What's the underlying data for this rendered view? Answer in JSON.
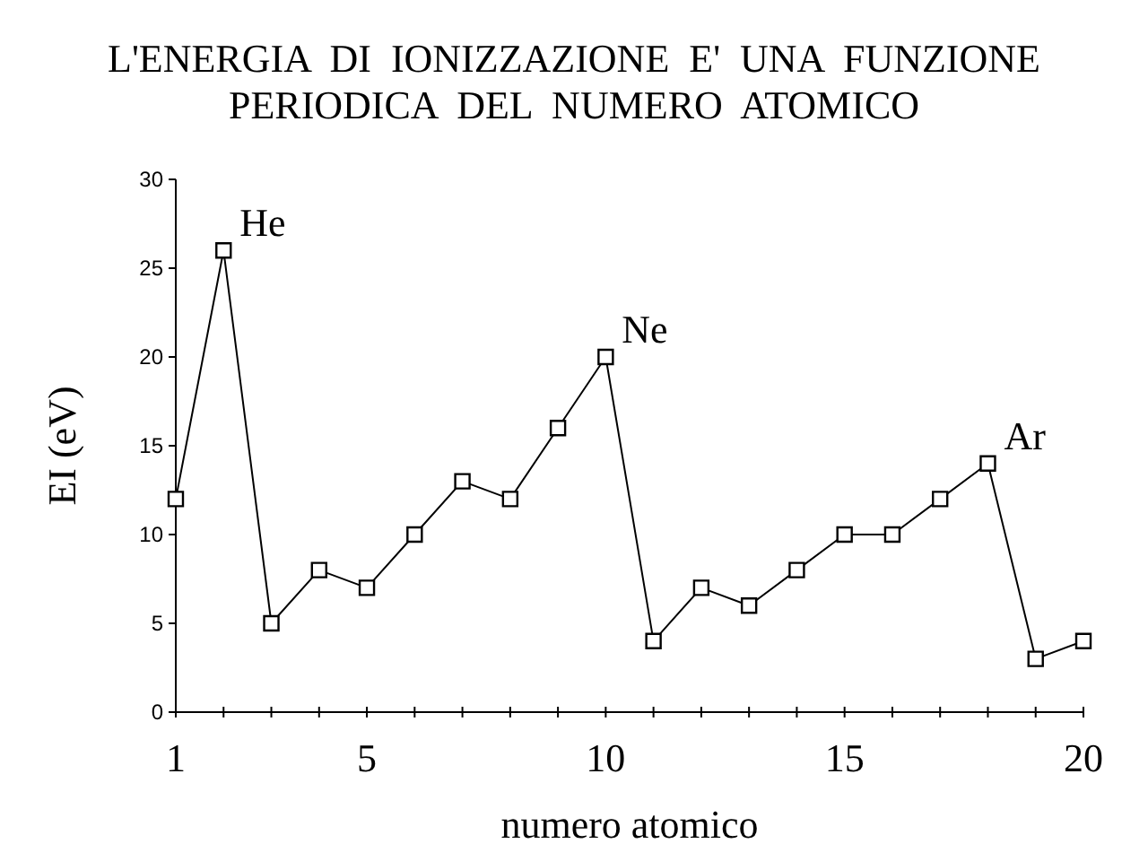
{
  "chart_data": {
    "type": "line",
    "title": "L'ENERGIA  DI  IONIZZAZIONE  E'  UNA  FUNZIONE\nPERIODICA  DEL  NUMERO  ATOMICO",
    "xlabel": "numero atomico",
    "ylabel": "EI (eV)",
    "x": [
      1,
      2,
      3,
      4,
      5,
      6,
      7,
      8,
      9,
      10,
      11,
      12,
      13,
      14,
      15,
      16,
      17,
      18,
      19,
      20
    ],
    "series": [
      {
        "color": "#000000",
        "values": [
          12,
          26,
          5,
          8,
          7,
          10,
          13,
          12,
          16,
          20,
          4,
          7,
          6,
          8,
          10,
          10,
          12,
          14,
          3,
          4
        ]
      }
    ],
    "xlim": [
      1,
      20
    ],
    "xticks": [
      1,
      {
        "value": 2,
        "label": null
      },
      {
        "value": 3,
        "label": null
      },
      {
        "value": 4,
        "label": null
      },
      5,
      {
        "value": 6,
        "label": null
      },
      {
        "value": 7,
        "label": null
      },
      {
        "value": 8,
        "label": null
      },
      {
        "value": 9,
        "label": null
      },
      10,
      {
        "value": 11,
        "label": null
      },
      {
        "value": 12,
        "label": null
      },
      {
        "value": 13,
        "label": null
      },
      {
        "value": 14,
        "label": null
      },
      15,
      {
        "value": 16,
        "label": null
      },
      {
        "value": 17,
        "label": null
      },
      {
        "value": 18,
        "label": null
      },
      {
        "value": 19,
        "label": null
      },
      20
    ],
    "ylim": [
      0,
      30
    ],
    "yticks": [
      0,
      5,
      10,
      15,
      20,
      25,
      30
    ],
    "marker": "square",
    "line_style": "solid",
    "grid": false,
    "annotations": [
      {
        "text": "He",
        "x": 2,
        "y": 26
      },
      {
        "text": "Ne",
        "x": 10,
        "y": 20
      },
      {
        "text": "Ar",
        "x": 18,
        "y": 14
      }
    ]
  }
}
